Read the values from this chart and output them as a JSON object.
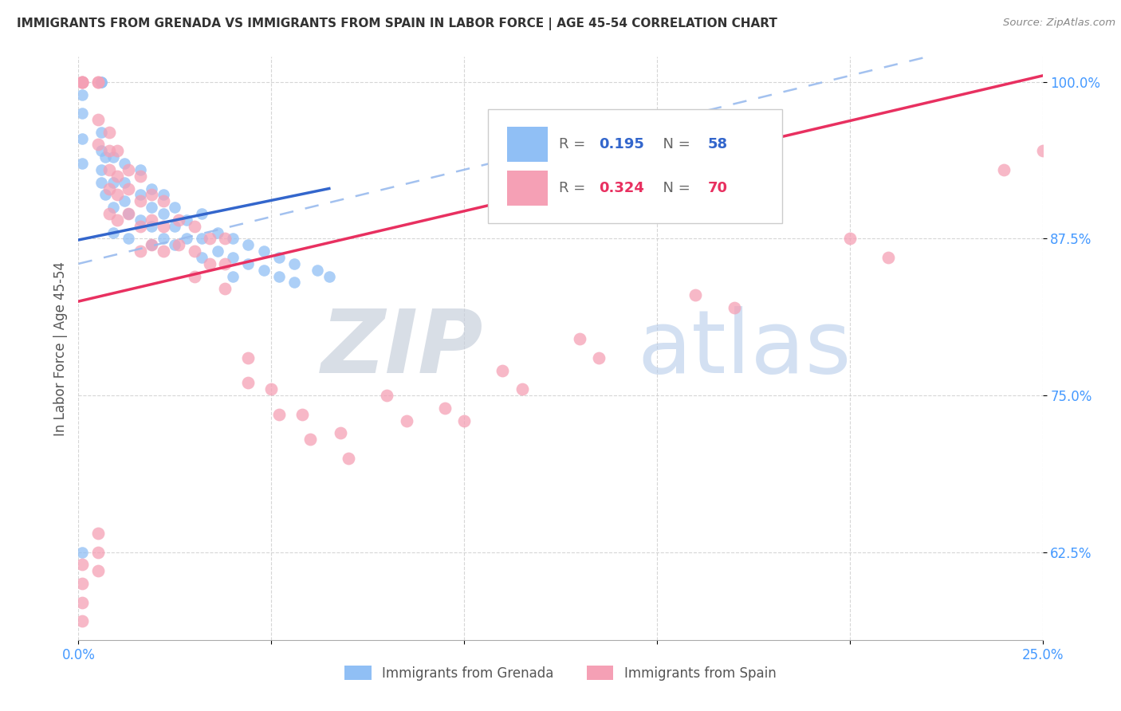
{
  "title": "IMMIGRANTS FROM GRENADA VS IMMIGRANTS FROM SPAIN IN LABOR FORCE | AGE 45-54 CORRELATION CHART",
  "source": "Source: ZipAtlas.com",
  "ylabel": "In Labor Force | Age 45-54",
  "xlim": [
    0.0,
    0.25
  ],
  "ylim": [
    0.555,
    1.02
  ],
  "xticks": [
    0.0,
    0.05,
    0.1,
    0.15,
    0.2,
    0.25
  ],
  "xticklabels": [
    "0.0%",
    "",
    "",
    "",
    "",
    "25.0%"
  ],
  "yticks": [
    0.625,
    0.75,
    0.875,
    1.0
  ],
  "yticklabels": [
    "62.5%",
    "75.0%",
    "87.5%",
    "100.0%"
  ],
  "blue_color": "#90bff5",
  "pink_color": "#f5a0b5",
  "trend_blue": "#3366cc",
  "trend_pink": "#e83060",
  "dashed_color": "#99bbee",
  "watermark_zip_color": "#d0d8e8",
  "watermark_atlas_color": "#b8ccee",
  "grenada_x": [
    0.001,
    0.001,
    0.001,
    0.001,
    0.001,
    0.001,
    0.001,
    0.006,
    0.006,
    0.006,
    0.006,
    0.006,
    0.006,
    0.007,
    0.007,
    0.009,
    0.009,
    0.009,
    0.009,
    0.012,
    0.012,
    0.012,
    0.013,
    0.013,
    0.016,
    0.016,
    0.016,
    0.019,
    0.019,
    0.019,
    0.019,
    0.022,
    0.022,
    0.022,
    0.025,
    0.025,
    0.025,
    0.028,
    0.028,
    0.032,
    0.032,
    0.032,
    0.036,
    0.036,
    0.04,
    0.04,
    0.04,
    0.044,
    0.044,
    0.048,
    0.048,
    0.052,
    0.052,
    0.056,
    0.056,
    0.062,
    0.065,
    0.001
  ],
  "grenada_y": [
    1.0,
    1.0,
    1.0,
    0.99,
    0.975,
    0.955,
    0.935,
    1.0,
    1.0,
    0.96,
    0.945,
    0.93,
    0.92,
    0.94,
    0.91,
    0.94,
    0.92,
    0.9,
    0.88,
    0.935,
    0.92,
    0.905,
    0.895,
    0.875,
    0.93,
    0.91,
    0.89,
    0.915,
    0.9,
    0.885,
    0.87,
    0.91,
    0.895,
    0.875,
    0.9,
    0.885,
    0.87,
    0.89,
    0.875,
    0.895,
    0.875,
    0.86,
    0.88,
    0.865,
    0.875,
    0.86,
    0.845,
    0.87,
    0.855,
    0.865,
    0.85,
    0.86,
    0.845,
    0.855,
    0.84,
    0.85,
    0.845,
    0.625
  ],
  "spain_x": [
    0.001,
    0.001,
    0.001,
    0.001,
    0.005,
    0.005,
    0.005,
    0.005,
    0.008,
    0.008,
    0.008,
    0.008,
    0.008,
    0.01,
    0.01,
    0.01,
    0.01,
    0.013,
    0.013,
    0.013,
    0.016,
    0.016,
    0.016,
    0.016,
    0.019,
    0.019,
    0.019,
    0.022,
    0.022,
    0.022,
    0.026,
    0.026,
    0.03,
    0.03,
    0.03,
    0.034,
    0.034,
    0.038,
    0.038,
    0.038,
    0.044,
    0.044,
    0.05,
    0.052,
    0.058,
    0.06,
    0.068,
    0.07,
    0.08,
    0.085,
    0.095,
    0.1,
    0.11,
    0.115,
    0.13,
    0.135,
    0.16,
    0.17,
    0.2,
    0.21,
    0.24,
    0.25,
    0.001,
    0.001,
    0.001,
    0.001,
    0.005,
    0.005,
    0.005
  ],
  "spain_y": [
    1.0,
    1.0,
    1.0,
    1.0,
    1.0,
    1.0,
    0.97,
    0.95,
    0.96,
    0.945,
    0.93,
    0.915,
    0.895,
    0.945,
    0.925,
    0.91,
    0.89,
    0.93,
    0.915,
    0.895,
    0.925,
    0.905,
    0.885,
    0.865,
    0.91,
    0.89,
    0.87,
    0.905,
    0.885,
    0.865,
    0.89,
    0.87,
    0.885,
    0.865,
    0.845,
    0.875,
    0.855,
    0.875,
    0.855,
    0.835,
    0.78,
    0.76,
    0.755,
    0.735,
    0.735,
    0.715,
    0.72,
    0.7,
    0.75,
    0.73,
    0.74,
    0.73,
    0.77,
    0.755,
    0.795,
    0.78,
    0.83,
    0.82,
    0.875,
    0.86,
    0.93,
    0.945,
    0.615,
    0.6,
    0.585,
    0.57,
    0.64,
    0.625,
    0.61
  ],
  "background_color": "#ffffff"
}
